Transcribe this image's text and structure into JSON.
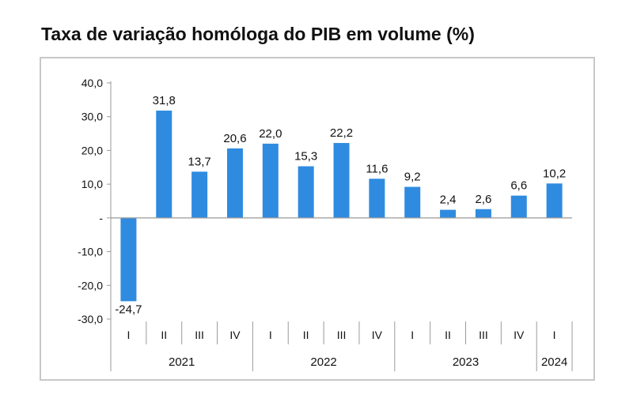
{
  "chart_data": {
    "type": "bar",
    "title": "Taxa de variação homóloga do PIB em volume (%)",
    "categories": [
      "I",
      "II",
      "III",
      "IV",
      "I",
      "II",
      "III",
      "IV",
      "I",
      "II",
      "III",
      "IV",
      "I"
    ],
    "groups": [
      {
        "label": "2021",
        "count": 4
      },
      {
        "label": "2022",
        "count": 4
      },
      {
        "label": "2023",
        "count": 4
      },
      {
        "label": "2024",
        "count": 1
      }
    ],
    "values": [
      -24.7,
      31.8,
      13.7,
      20.6,
      22.0,
      15.3,
      22.2,
      11.6,
      9.2,
      2.4,
      2.6,
      6.6,
      10.2
    ],
    "data_labels": [
      "-24,7",
      "31,8",
      "13,7",
      "20,6",
      "22,0",
      "15,3",
      "22,2",
      "11,6",
      "9,2",
      "2,4",
      "2,6",
      "6,6",
      "10,2"
    ],
    "yticks": [
      40,
      30,
      20,
      10,
      0,
      -10,
      -20,
      -30
    ],
    "ytick_labels": [
      "40,0",
      "30,0",
      "20,0",
      "10,0",
      "-",
      "-10,0",
      "-20,0",
      "-30,0"
    ],
    "ylim": [
      -30,
      40
    ],
    "bar_color": "#2f8be0",
    "grid": false,
    "legend": "none"
  }
}
